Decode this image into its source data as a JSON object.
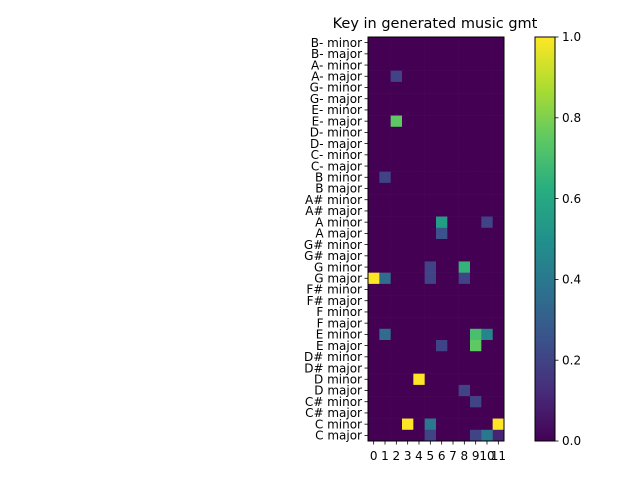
{
  "chart_data": {
    "type": "heatmap",
    "title": "Key in generated music gmt",
    "x_categories": [
      "0",
      "1",
      "2",
      "3",
      "4",
      "5",
      "6",
      "7",
      "8",
      "9",
      "10",
      "11"
    ],
    "y_categories": [
      "B- minor",
      "B- major",
      "A- minor",
      "A- major",
      "G- minor",
      "G- major",
      "E- minor",
      "E- major",
      "D- minor",
      "D- major",
      "C- minor",
      "C- major",
      "B minor",
      "B major",
      "A# minor",
      "A# major",
      "A minor",
      "A major",
      "G# minor",
      "G# major",
      "G minor",
      "G major",
      "F# minor",
      "F# major",
      "F minor",
      "F major",
      "E minor",
      "E major",
      "D# minor",
      "D# major",
      "D minor",
      "D major",
      "C# minor",
      "C# major",
      "C minor",
      "C major"
    ],
    "values": [
      [
        0,
        0,
        0,
        0,
        0,
        0,
        0,
        0,
        0,
        0,
        0,
        0
      ],
      [
        0,
        0,
        0,
        0,
        0,
        0,
        0,
        0,
        0,
        0,
        0,
        0
      ],
      [
        0,
        0,
        0,
        0,
        0,
        0,
        0,
        0,
        0,
        0,
        0,
        0
      ],
      [
        0,
        0,
        0.2,
        0,
        0,
        0,
        0,
        0,
        0,
        0,
        0,
        0
      ],
      [
        0,
        0,
        0,
        0,
        0,
        0,
        0,
        0,
        0,
        0,
        0,
        0
      ],
      [
        0,
        0,
        0,
        0,
        0,
        0,
        0,
        0,
        0,
        0,
        0,
        0
      ],
      [
        0,
        0,
        0,
        0,
        0,
        0,
        0,
        0,
        0,
        0,
        0,
        0
      ],
      [
        0,
        0,
        0.75,
        0,
        0,
        0,
        0,
        0,
        0,
        0,
        0,
        0
      ],
      [
        0,
        0,
        0,
        0,
        0,
        0,
        0,
        0,
        0,
        0,
        0,
        0
      ],
      [
        0,
        0,
        0,
        0,
        0,
        0,
        0,
        0,
        0,
        0,
        0,
        0
      ],
      [
        0,
        0,
        0,
        0,
        0,
        0,
        0,
        0,
        0,
        0,
        0,
        0
      ],
      [
        0,
        0,
        0,
        0,
        0,
        0,
        0,
        0,
        0,
        0,
        0,
        0
      ],
      [
        0,
        0.2,
        0,
        0,
        0,
        0,
        0,
        0,
        0,
        0,
        0,
        0
      ],
      [
        0,
        0,
        0,
        0,
        0,
        0,
        0,
        0,
        0,
        0,
        0,
        0
      ],
      [
        0,
        0,
        0,
        0,
        0,
        0,
        0,
        0,
        0,
        0,
        0,
        0
      ],
      [
        0,
        0,
        0,
        0,
        0,
        0,
        0,
        0,
        0,
        0,
        0,
        0
      ],
      [
        0,
        0,
        0,
        0,
        0,
        0,
        0.55,
        0,
        0,
        0,
        0.2,
        0
      ],
      [
        0,
        0,
        0,
        0,
        0,
        0,
        0.25,
        0,
        0,
        0,
        0,
        0
      ],
      [
        0,
        0,
        0,
        0,
        0,
        0,
        0,
        0,
        0,
        0,
        0,
        0
      ],
      [
        0,
        0,
        0,
        0,
        0,
        0,
        0,
        0,
        0,
        0,
        0,
        0
      ],
      [
        0,
        0,
        0,
        0,
        0,
        0.2,
        0,
        0,
        0.65,
        0,
        0,
        0
      ],
      [
        1.0,
        0.35,
        0,
        0,
        0,
        0.2,
        0,
        0,
        0.2,
        0,
        0,
        0
      ],
      [
        0,
        0,
        0,
        0,
        0,
        0,
        0,
        0,
        0,
        0,
        0,
        0
      ],
      [
        0,
        0,
        0,
        0,
        0,
        0,
        0,
        0,
        0,
        0,
        0,
        0
      ],
      [
        0,
        0,
        0,
        0,
        0,
        0,
        0,
        0,
        0,
        0,
        0,
        0
      ],
      [
        0,
        0,
        0,
        0,
        0,
        0,
        0,
        0,
        0,
        0,
        0,
        0
      ],
      [
        0,
        0.35,
        0,
        0,
        0,
        0,
        0,
        0,
        0,
        0.7,
        0.45,
        0
      ],
      [
        0,
        0,
        0,
        0,
        0,
        0,
        0.2,
        0,
        0,
        0.75,
        0,
        0
      ],
      [
        0,
        0,
        0,
        0,
        0,
        0,
        0,
        0,
        0,
        0,
        0,
        0
      ],
      [
        0,
        0,
        0,
        0,
        0,
        0,
        0,
        0,
        0,
        0,
        0,
        0
      ],
      [
        0,
        0,
        0,
        0,
        1.0,
        0,
        0,
        0,
        0,
        0,
        0,
        0
      ],
      [
        0,
        0,
        0,
        0,
        0,
        0,
        0,
        0,
        0.2,
        0,
        0,
        0
      ],
      [
        0,
        0,
        0,
        0,
        0,
        0,
        0,
        0,
        0,
        0.2,
        0,
        0
      ],
      [
        0,
        0,
        0,
        0,
        0,
        0,
        0,
        0,
        0,
        0,
        0,
        0
      ],
      [
        0,
        0,
        0,
        1.0,
        0,
        0.4,
        0,
        0,
        0,
        0,
        0,
        1.0
      ],
      [
        0,
        0,
        0,
        0,
        0,
        0.2,
        0,
        0,
        0,
        0.2,
        0.4,
        0.1
      ]
    ],
    "vmin": 0,
    "vmax": 1.0,
    "colormap": "viridis",
    "colorbar_ticks": [
      "0.0",
      "0.2",
      "0.4",
      "0.6",
      "0.8",
      "1.0"
    ]
  }
}
